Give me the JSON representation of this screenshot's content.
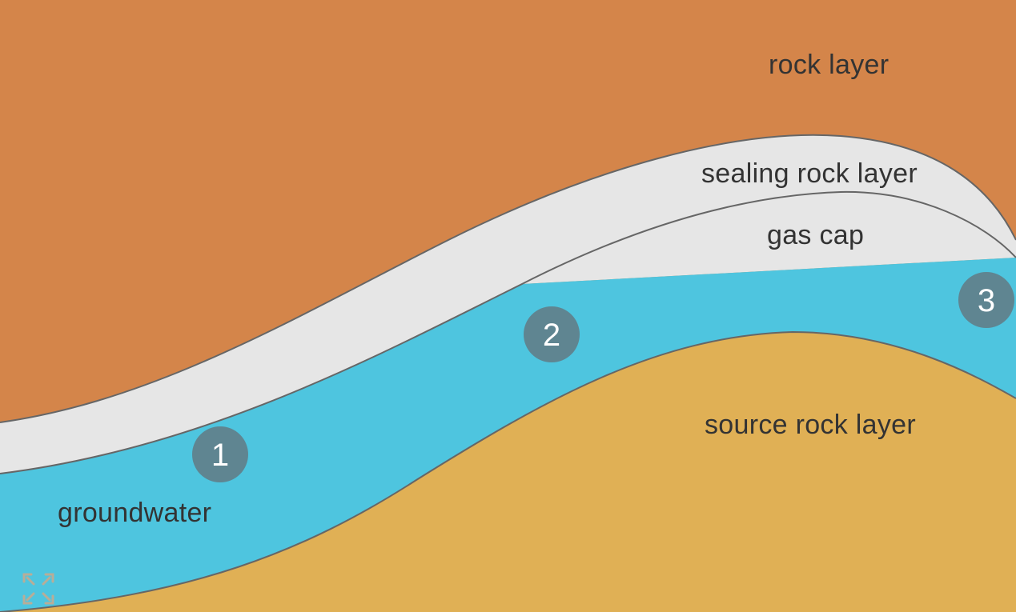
{
  "colors": {
    "rock_layer": "#D4854A",
    "sealing_rock_layer": "#E6E6E6",
    "gas_cap": "#E6E6E6",
    "groundwater": "#4EC5DF",
    "source_rock_layer": "#E0B055",
    "boundary_line": "#666666",
    "label_text": "#333333",
    "marker_fill": "#5F8591",
    "marker_text": "#FFFFFF",
    "expand_icon": "#B8AD98"
  },
  "labels": {
    "rock_layer": "rock layer",
    "sealing_rock_layer": "sealing rock layer",
    "gas_cap": "gas cap",
    "source_rock_layer": "source rock layer",
    "groundwater": "groundwater"
  },
  "markers": [
    {
      "number": "1"
    },
    {
      "number": "2"
    },
    {
      "number": "3"
    }
  ],
  "controls": {
    "expand_icon": "expand-icon"
  }
}
